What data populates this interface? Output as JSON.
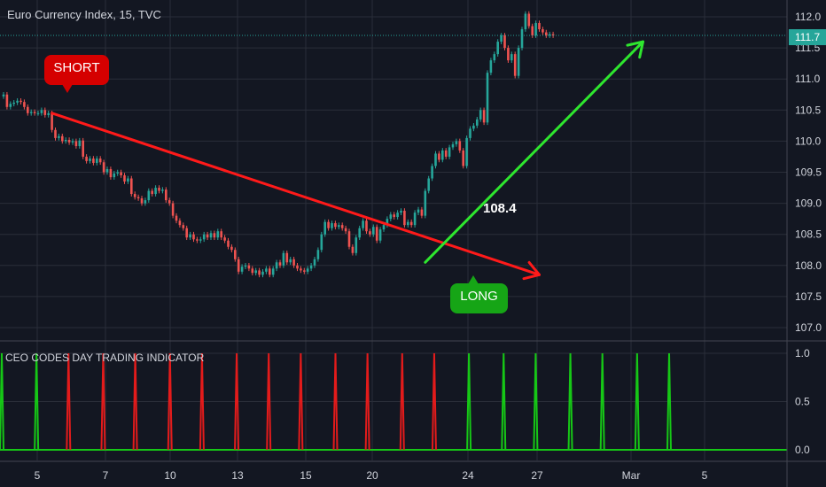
{
  "chart_data": [
    {
      "type": "candlestick",
      "title": "Euro Currency Index, 15, TVC",
      "y_ticks": [
        "112.0",
        "111.5",
        "111.0",
        "110.5",
        "110.0",
        "109.5",
        "109.0",
        "108.5",
        "108.0",
        "107.5",
        "107.0"
      ],
      "ylim": [
        106.9,
        112.3
      ],
      "x_ticks": [
        "5",
        "7",
        "10",
        "13",
        "15",
        "20",
        "24",
        "27",
        "Mar",
        "5"
      ],
      "last_price": "111.7",
      "last_price_value": 111.7,
      "grid": true,
      "series": [
        {
          "type": "candlestick",
          "x": [
            0,
            1,
            2,
            3,
            4,
            5,
            6,
            7,
            8,
            9,
            10,
            11,
            12,
            13,
            14,
            15,
            16,
            17,
            18,
            19,
            20,
            21,
            22,
            23,
            24,
            25,
            26,
            27,
            28,
            29,
            30,
            31,
            32,
            33,
            34,
            35,
            36,
            37,
            38,
            39,
            40,
            41,
            42,
            43,
            44,
            45,
            46,
            47,
            48,
            49,
            50,
            51,
            52,
            53,
            54,
            55,
            56,
            57,
            58,
            59,
            60,
            61,
            62,
            63,
            64,
            65,
            66,
            67,
            68,
            69,
            70,
            71,
            72,
            73,
            74,
            75,
            76,
            77,
            78,
            79,
            80,
            81,
            82,
            83,
            84,
            85,
            86,
            87,
            88,
            89,
            90,
            91,
            92,
            93,
            94,
            95,
            96,
            97,
            98,
            99,
            100,
            101,
            102,
            103,
            104,
            105,
            106,
            107,
            108,
            109,
            110,
            111,
            112,
            113,
            114,
            115,
            116,
            117,
            118,
            119,
            120,
            121,
            122,
            123,
            124,
            125,
            126,
            127,
            128,
            129,
            130,
            131,
            132,
            133,
            134,
            135,
            136,
            137,
            138,
            139,
            140,
            141,
            142,
            143,
            144,
            145,
            146,
            147,
            148,
            149,
            150,
            151,
            152,
            153,
            154,
            155,
            156,
            157,
            158,
            159
          ],
          "close": [
            110.75,
            110.55,
            110.6,
            110.62,
            110.65,
            110.63,
            110.55,
            110.45,
            110.47,
            110.45,
            110.45,
            110.5,
            110.42,
            110.45,
            110.18,
            110.05,
            110.08,
            110.0,
            110.02,
            109.98,
            110.0,
            109.92,
            110.01,
            109.75,
            109.68,
            109.72,
            109.65,
            109.72,
            109.66,
            109.5,
            109.55,
            109.42,
            109.48,
            109.5,
            109.45,
            109.35,
            109.4,
            109.15,
            109.1,
            109.08,
            109.0,
            109.05,
            109.2,
            109.15,
            109.25,
            109.2,
            109.22,
            109.05,
            109.0,
            108.8,
            108.72,
            108.65,
            108.6,
            108.45,
            108.5,
            108.42,
            108.4,
            108.42,
            108.5,
            108.45,
            108.52,
            108.45,
            108.55,
            108.45,
            108.4,
            108.3,
            108.25,
            108.1,
            107.9,
            107.98,
            108.0,
            107.95,
            107.88,
            107.92,
            107.85,
            107.9,
            107.95,
            107.85,
            107.95,
            108.05,
            108.0,
            108.2,
            108.05,
            108.1,
            108.0,
            107.95,
            107.92,
            107.9,
            107.95,
            108.0,
            108.1,
            108.25,
            108.5,
            108.7,
            108.6,
            108.68,
            108.62,
            108.65,
            108.6,
            108.55,
            108.3,
            108.2,
            108.45,
            108.6,
            108.72,
            108.55,
            108.5,
            108.62,
            108.4,
            108.58,
            108.65,
            108.75,
            108.82,
            108.78,
            108.85,
            108.88,
            108.65,
            108.7,
            108.65,
            108.85,
            108.9,
            108.8,
            109.2,
            109.4,
            109.6,
            109.8,
            109.7,
            109.85,
            109.75,
            109.9,
            109.95,
            110.0,
            109.85,
            109.6,
            110.05,
            110.2,
            110.25,
            110.35,
            110.5,
            110.3,
            111.1,
            111.3,
            111.4,
            111.6,
            111.7,
            111.5,
            111.3,
            111.4,
            111.05,
            111.5,
            111.8,
            112.05,
            111.85,
            111.7,
            111.9,
            111.8,
            111.75,
            111.7,
            111.72,
            111.7
          ],
          "open": [
            110.72,
            110.75,
            110.55,
            110.6,
            110.62,
            110.65,
            110.63,
            110.55,
            110.45,
            110.47,
            110.45,
            110.45,
            110.5,
            110.42,
            110.45,
            110.18,
            110.05,
            110.08,
            110.0,
            110.02,
            109.98,
            110.0,
            109.92,
            110.01,
            109.75,
            109.68,
            109.72,
            109.65,
            109.72,
            109.66,
            109.5,
            109.55,
            109.42,
            109.48,
            109.5,
            109.45,
            109.35,
            109.4,
            109.15,
            109.1,
            109.08,
            109.0,
            109.05,
            109.2,
            109.15,
            109.25,
            109.2,
            109.22,
            109.05,
            109.0,
            108.8,
            108.72,
            108.65,
            108.6,
            108.45,
            108.5,
            108.42,
            108.4,
            108.42,
            108.5,
            108.45,
            108.52,
            108.45,
            108.55,
            108.45,
            108.4,
            108.3,
            108.25,
            108.1,
            107.9,
            107.98,
            108.0,
            107.95,
            107.88,
            107.92,
            107.85,
            107.9,
            107.95,
            107.85,
            107.95,
            108.05,
            108.0,
            108.2,
            108.05,
            108.1,
            108.0,
            107.95,
            107.92,
            107.9,
            107.95,
            108.0,
            108.1,
            108.25,
            108.5,
            108.7,
            108.6,
            108.68,
            108.62,
            108.65,
            108.6,
            108.55,
            108.3,
            108.2,
            108.45,
            108.6,
            108.72,
            108.55,
            108.5,
            108.62,
            108.4,
            108.58,
            108.65,
            108.75,
            108.82,
            108.78,
            108.85,
            108.88,
            108.65,
            108.7,
            108.65,
            108.85,
            108.9,
            108.8,
            109.2,
            109.4,
            109.6,
            109.8,
            109.7,
            109.85,
            109.75,
            109.9,
            109.95,
            110.0,
            109.85,
            109.6,
            110.05,
            110.2,
            110.25,
            110.35,
            110.5,
            110.3,
            111.1,
            111.3,
            111.4,
            111.6,
            111.7,
            111.5,
            111.3,
            111.4,
            111.05,
            111.5,
            111.8,
            112.05,
            111.85,
            111.7,
            111.9,
            111.8,
            111.75,
            111.7,
            111.72
          ]
        }
      ],
      "annotations": [
        {
          "text": "SHORT",
          "color": "#d50000"
        },
        {
          "text": "LONG",
          "color": "#16a516"
        },
        {
          "text": "108.4",
          "color": "#ffffff"
        }
      ],
      "trend_lines": [
        {
          "color": "#ff1a1a",
          "from": [
            14,
            110.45
          ],
          "to": [
            155,
            107.85
          ],
          "arrow": true
        },
        {
          "color": "#2ee62e",
          "from": [
            122,
            108.05
          ],
          "to": [
            185,
            111.6
          ],
          "arrow": true
        }
      ]
    },
    {
      "type": "bar",
      "title": "CEO CODES DAY TRADING INDICATOR",
      "y_ticks": [
        "1.0",
        "0.5",
        "0.0"
      ],
      "ylim": [
        0,
        1
      ],
      "signals": [
        {
          "x": 0,
          "value": 1,
          "color": "#16c716"
        },
        {
          "x": 13,
          "value": 1,
          "color": "#16c716"
        },
        {
          "x": 25,
          "value": 1,
          "color": "#e31b1b"
        },
        {
          "x": 38,
          "value": 1,
          "color": "#e31b1b"
        },
        {
          "x": 50,
          "value": 1,
          "color": "#e31b1b"
        },
        {
          "x": 63,
          "value": 1,
          "color": "#e31b1b"
        },
        {
          "x": 75,
          "value": 1,
          "color": "#e31b1b"
        },
        {
          "x": 88,
          "value": 1,
          "color": "#e31b1b"
        },
        {
          "x": 100,
          "value": 1,
          "color": "#e31b1b"
        },
        {
          "x": 112,
          "value": 1,
          "color": "#e31b1b"
        },
        {
          "x": 125,
          "value": 1,
          "color": "#e31b1b"
        },
        {
          "x": 137,
          "value": 1,
          "color": "#e31b1b"
        },
        {
          "x": 150,
          "value": 1,
          "color": "#e31b1b"
        },
        {
          "x": 162,
          "value": 1,
          "color": "#e31b1b"
        },
        {
          "x": 175,
          "value": 1,
          "color": "#16c716"
        },
        {
          "x": 188,
          "value": 1,
          "color": "#16c716"
        },
        {
          "x": 200,
          "value": 1,
          "color": "#16c716"
        },
        {
          "x": 213,
          "value": 1,
          "color": "#16c716"
        },
        {
          "x": 225,
          "value": 1,
          "color": "#16c716"
        },
        {
          "x": 238,
          "value": 1,
          "color": "#16c716"
        },
        {
          "x": 250,
          "value": 1,
          "color": "#16c716"
        }
      ]
    }
  ],
  "colors": {
    "background": "#131722",
    "grid": "#2a2e39",
    "up": "#26a69a",
    "down": "#ef5350",
    "text": "#d1d4dc",
    "baseline_green": "#16c716"
  }
}
